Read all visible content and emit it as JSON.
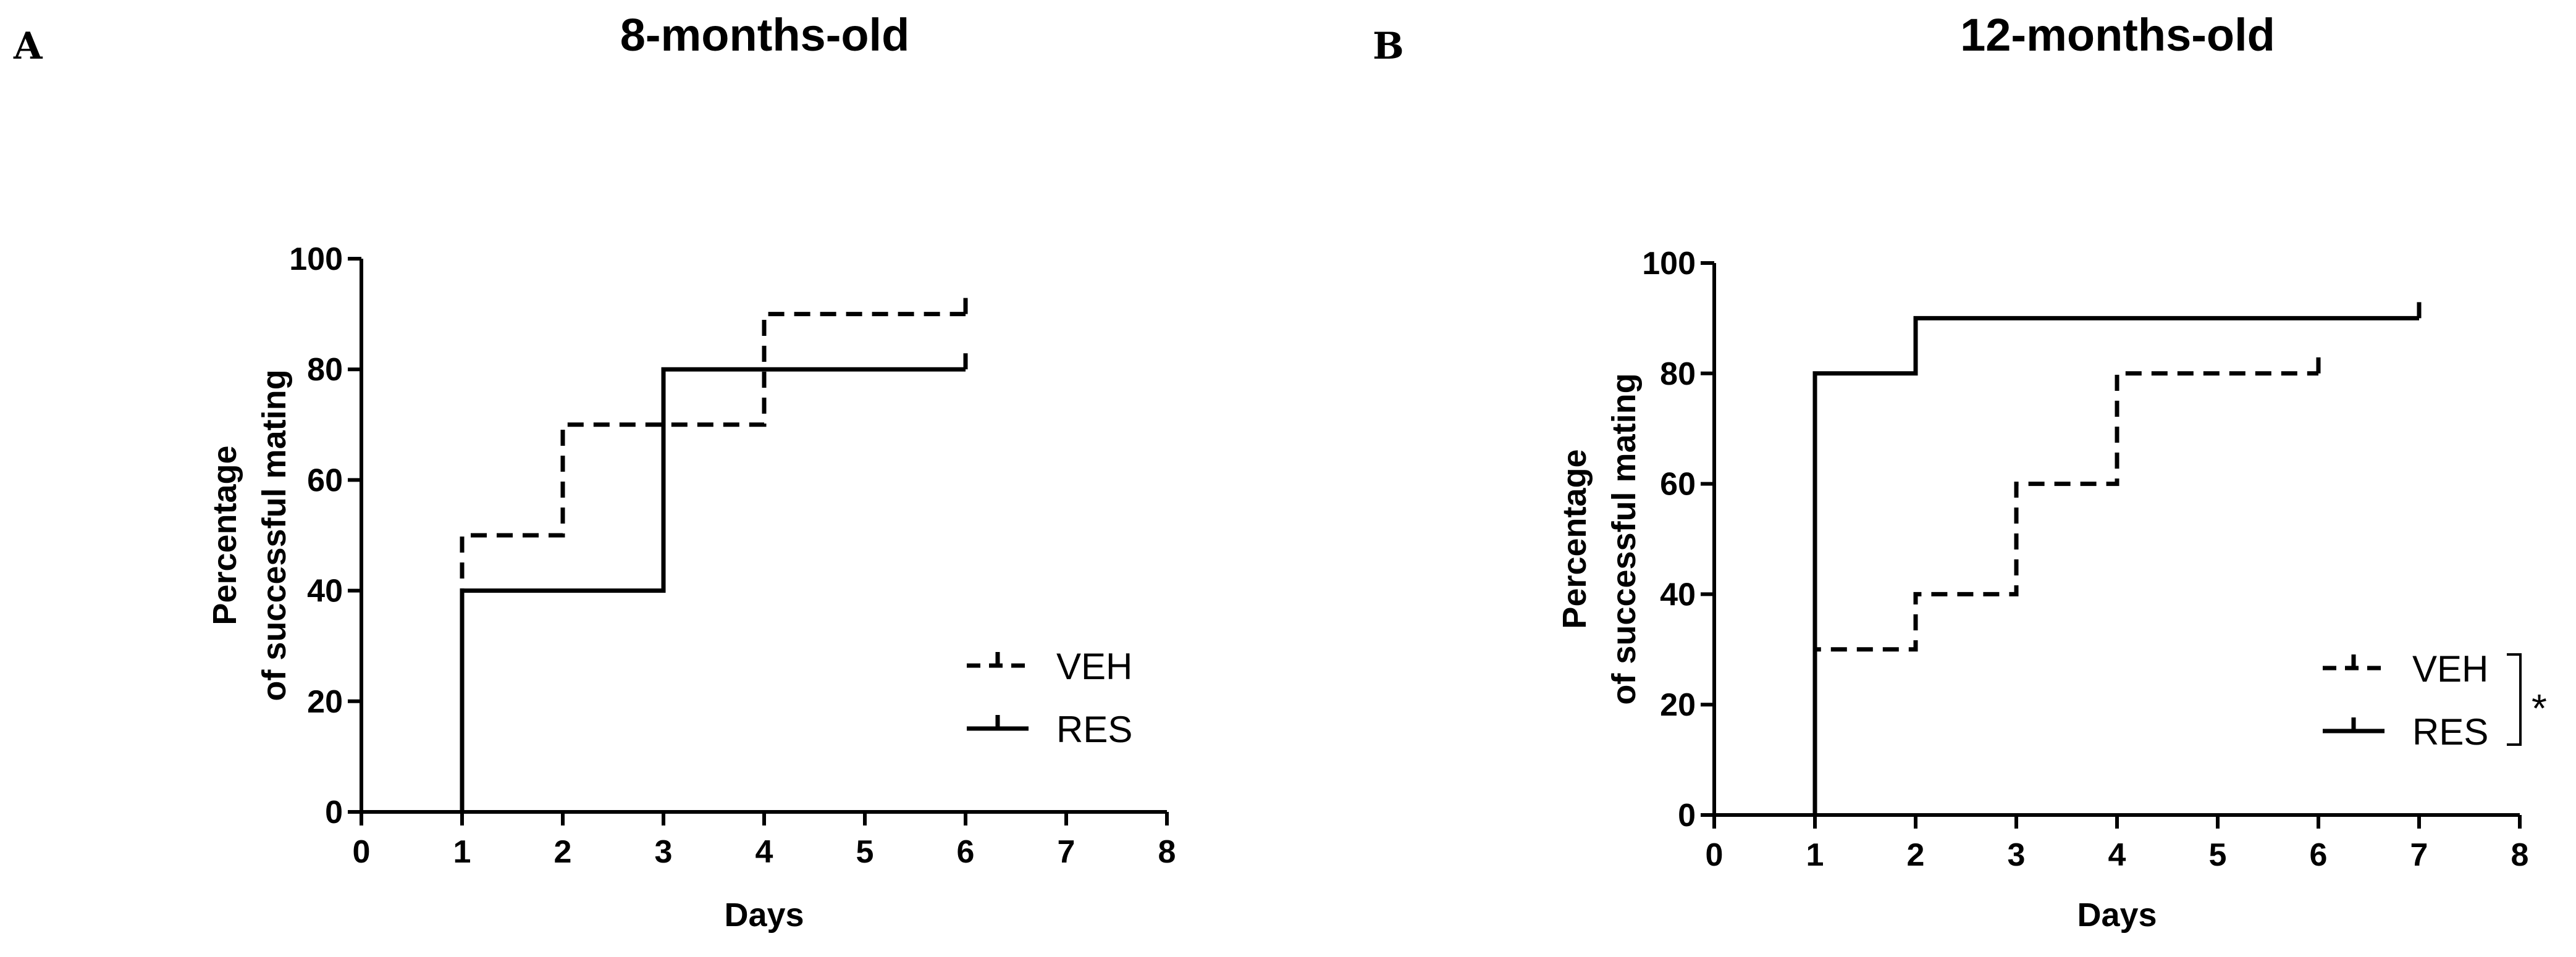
{
  "chart_data": [
    {
      "panel": "A",
      "type": "line",
      "subtype": "step",
      "title": "8-months-old",
      "xlabel": "Days",
      "ylabel": "Percentage\nof successful mating",
      "xlim": [
        0,
        8
      ],
      "ylim": [
        0,
        100
      ],
      "xticks": [
        "0",
        "1",
        "2",
        "3",
        "4",
        "5",
        "6",
        "7",
        "8"
      ],
      "yticks": [
        "0",
        "20",
        "40",
        "60",
        "80",
        "100"
      ],
      "legend_position": "bottom-right",
      "significance": "",
      "series": [
        {
          "name": "VEH",
          "style": "dashed",
          "x": [
            1,
            2,
            3,
            4,
            6
          ],
          "values": [
            50,
            70,
            70,
            90,
            90
          ]
        },
        {
          "name": "RES",
          "style": "solid",
          "x": [
            1,
            2,
            3,
            4,
            6
          ],
          "values": [
            40,
            40,
            80,
            80,
            80
          ]
        }
      ]
    },
    {
      "panel": "B",
      "type": "line",
      "subtype": "step",
      "title": "12-months-old",
      "xlabel": "Days",
      "ylabel": "Percentage\nof successful mating",
      "xlim": [
        0,
        8
      ],
      "ylim": [
        0,
        100
      ],
      "xticks": [
        "0",
        "1",
        "2",
        "3",
        "4",
        "5",
        "6",
        "7",
        "8"
      ],
      "yticks": [
        "0",
        "20",
        "40",
        "60",
        "80",
        "100"
      ],
      "legend_position": "bottom-right",
      "significance": "*",
      "series": [
        {
          "name": "VEH",
          "style": "dashed",
          "x": [
            1,
            2,
            3,
            4,
            6
          ],
          "values": [
            30,
            40,
            60,
            80,
            80
          ]
        },
        {
          "name": "RES",
          "style": "solid",
          "x": [
            1,
            2,
            6,
            7
          ],
          "values": [
            80,
            90,
            90,
            90
          ]
        }
      ]
    }
  ]
}
